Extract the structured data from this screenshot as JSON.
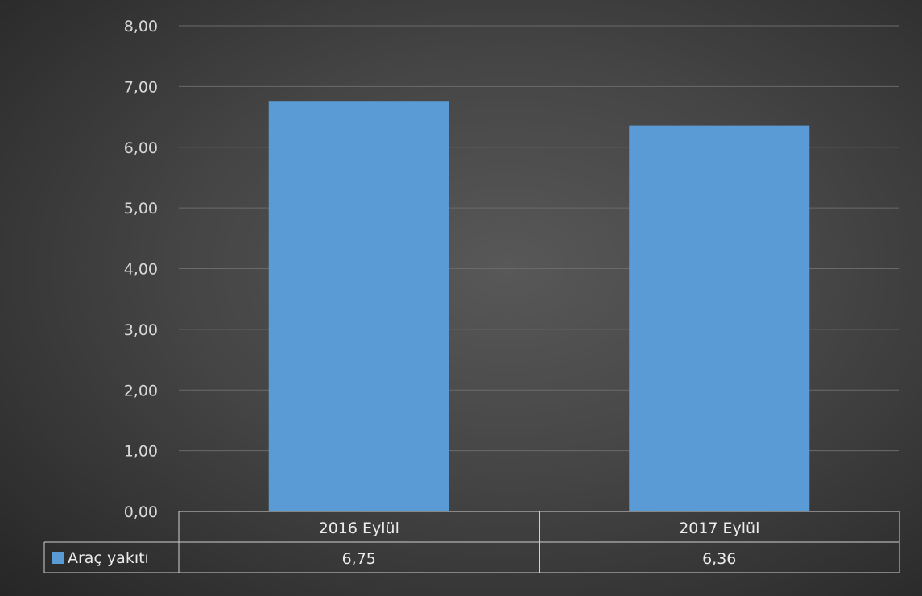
{
  "chart_data": {
    "type": "bar",
    "categories": [
      "2016 Eylül",
      "2017 Eylül"
    ],
    "series": [
      {
        "name": "Araç yakıtı",
        "values": [
          6.75,
          6.36
        ],
        "display_values": [
          "6,75",
          "6,36"
        ],
        "color": "#5b9bd5"
      }
    ],
    "ylim": [
      0,
      8
    ],
    "yticks": [
      "0,00",
      "1,00",
      "2,00",
      "3,00",
      "4,00",
      "5,00",
      "6,00",
      "7,00",
      "8,00"
    ],
    "grid": true,
    "data_table": true,
    "legend_placement": "in data table",
    "colors": {
      "background": "#454545",
      "gridline": "#6a6a6a",
      "table_border": "#d0d0d0",
      "text": "#d9d9d9"
    }
  }
}
